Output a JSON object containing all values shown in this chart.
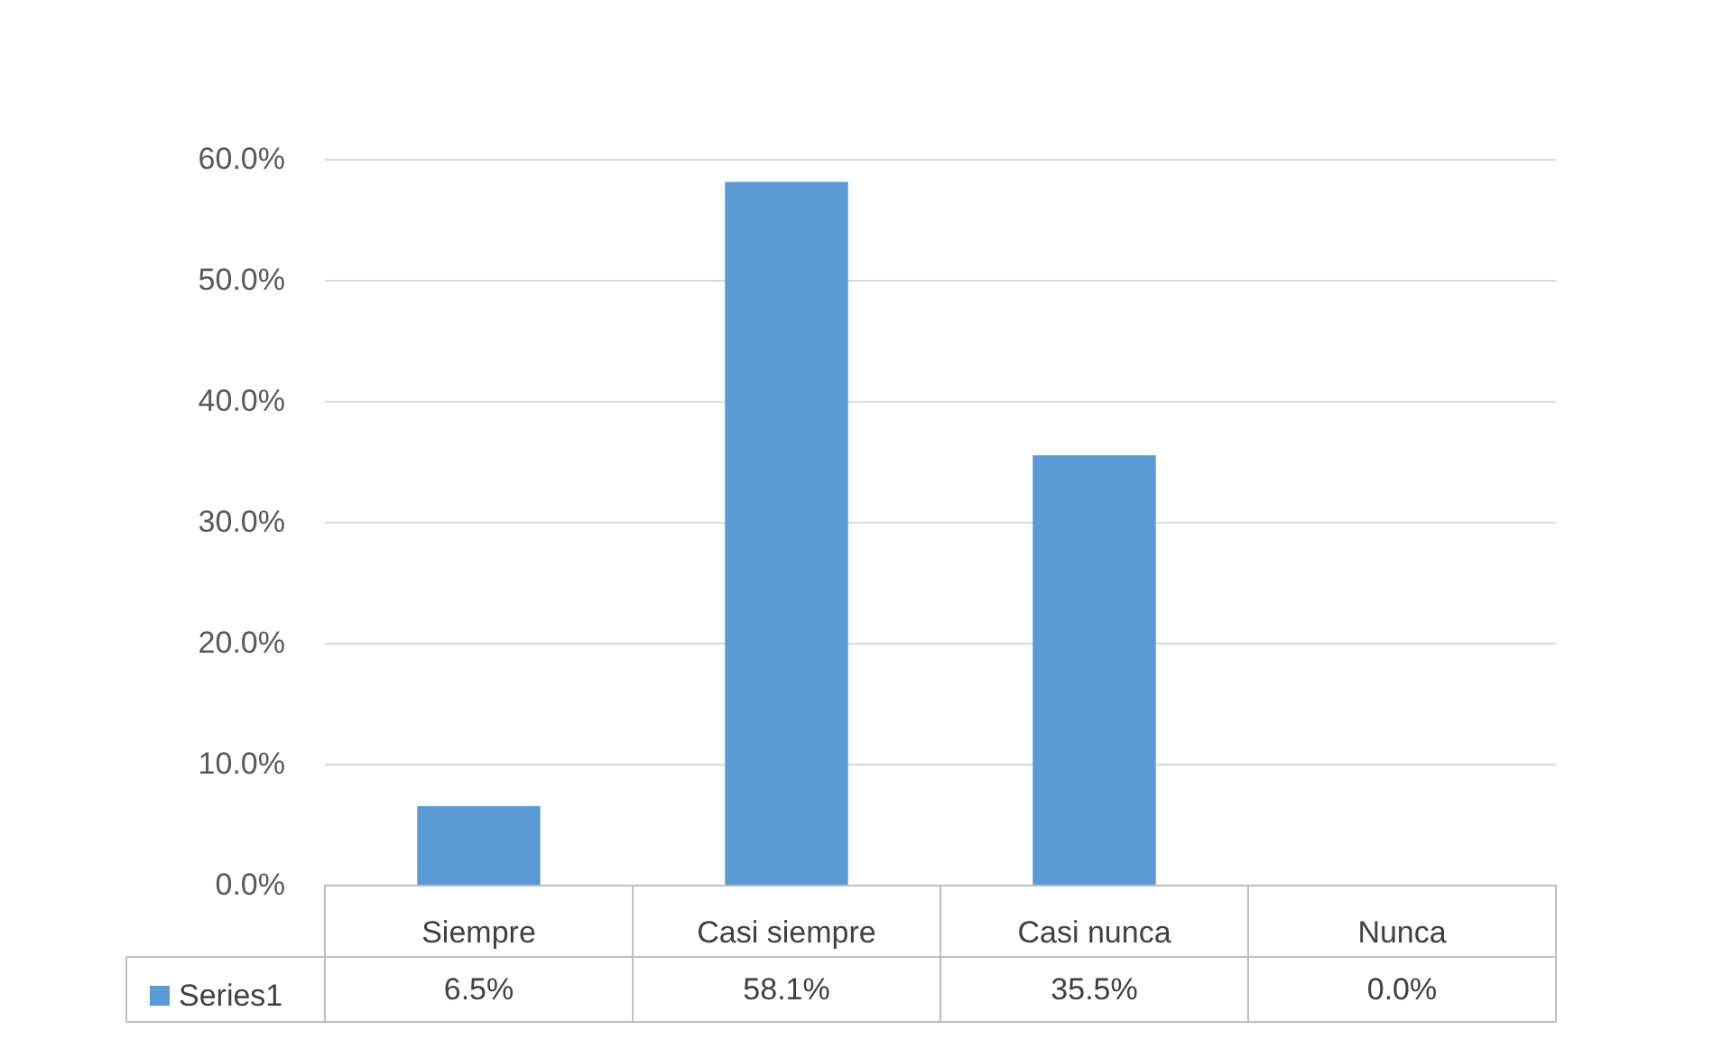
{
  "chart_data": {
    "type": "bar",
    "categories": [
      "Siempre",
      "Casi siempre",
      "Casi nunca",
      "Nunca"
    ],
    "series": [
      {
        "name": "Series1",
        "color": "#5b9bd5",
        "values": [
          6.5,
          58.1,
          35.5,
          0.0
        ],
        "value_labels": [
          "6.5%",
          "58.1%",
          "35.5%",
          "0.0%"
        ]
      }
    ],
    "ylim": [
      0,
      60
    ],
    "yticks": [
      {
        "value": 0,
        "label": "0.0%"
      },
      {
        "value": 10,
        "label": "10.0%"
      },
      {
        "value": 20,
        "label": "20.0%"
      },
      {
        "value": 30,
        "label": "30.0%"
      },
      {
        "value": 40,
        "label": "40.0%"
      },
      {
        "value": 50,
        "label": "50.0%"
      },
      {
        "value": 60,
        "label": "60.0%"
      }
    ],
    "grid": "y",
    "legend": "bottom left"
  }
}
